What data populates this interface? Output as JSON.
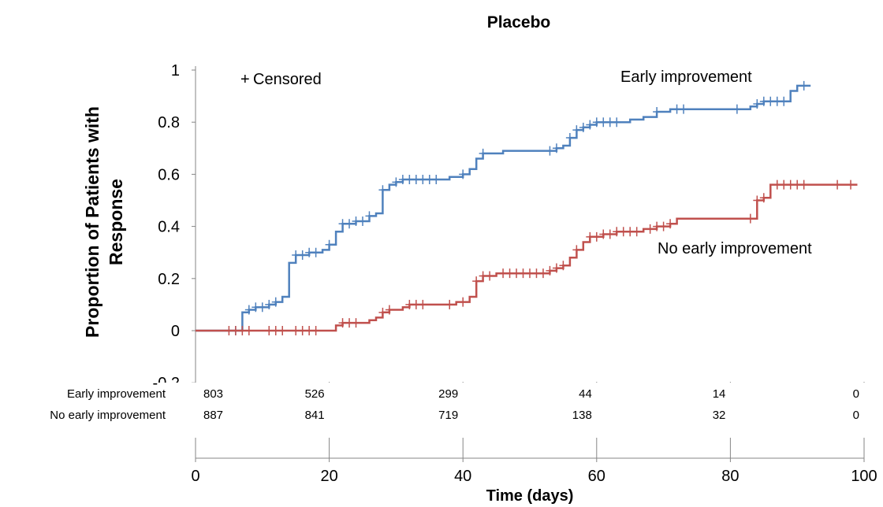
{
  "chart_data": {
    "type": "line",
    "title": "Placebo",
    "xlabel": "Time (days)",
    "ylabel_lines": [
      "Proportion of Patients with",
      "Response"
    ],
    "xlim": [
      0,
      100
    ],
    "ylim": [
      -0.2,
      1
    ],
    "x_ticks": [
      "0",
      "20",
      "40",
      "60",
      "80",
      "100"
    ],
    "y_ticks": [
      "-0.2",
      "0",
      "0.2",
      "0.4",
      "0.6",
      "0.8",
      "1"
    ],
    "legend_marker": "+",
    "legend_text": "Censored",
    "colors": {
      "early": "#4f81bd",
      "no_early": "#c0504d"
    },
    "series": [
      {
        "name": "Early improvement",
        "color": "#4f81bd",
        "steps": [
          [
            0,
            0
          ],
          [
            7,
            0.07
          ],
          [
            8,
            0.08
          ],
          [
            9,
            0.09
          ],
          [
            11,
            0.1
          ],
          [
            12,
            0.11
          ],
          [
            13,
            0.13
          ],
          [
            14,
            0.26
          ],
          [
            15,
            0.29
          ],
          [
            17,
            0.3
          ],
          [
            19,
            0.31
          ],
          [
            20,
            0.33
          ],
          [
            21,
            0.38
          ],
          [
            22,
            0.41
          ],
          [
            24,
            0.42
          ],
          [
            26,
            0.44
          ],
          [
            27,
            0.45
          ],
          [
            28,
            0.54
          ],
          [
            29,
            0.56
          ],
          [
            30,
            0.57
          ],
          [
            31,
            0.58
          ],
          [
            35,
            0.58
          ],
          [
            38,
            0.59
          ],
          [
            40,
            0.6
          ],
          [
            41,
            0.62
          ],
          [
            42,
            0.66
          ],
          [
            43,
            0.68
          ],
          [
            46,
            0.69
          ],
          [
            53,
            0.69
          ],
          [
            54,
            0.7
          ],
          [
            55,
            0.71
          ],
          [
            56,
            0.74
          ],
          [
            57,
            0.77
          ],
          [
            58,
            0.78
          ],
          [
            59,
            0.79
          ],
          [
            60,
            0.8
          ],
          [
            65,
            0.81
          ],
          [
            67,
            0.82
          ],
          [
            69,
            0.84
          ],
          [
            71,
            0.85
          ],
          [
            83,
            0.86
          ],
          [
            84,
            0.87
          ],
          [
            85,
            0.88
          ],
          [
            89,
            0.92
          ],
          [
            90,
            0.94
          ],
          [
            92,
            0.94
          ]
        ],
        "censored_x": [
          6,
          8,
          9,
          10,
          11,
          12,
          15,
          16,
          17,
          18,
          20,
          22,
          23,
          24,
          25,
          26,
          28,
          30,
          31,
          32,
          33,
          34,
          35,
          36,
          40,
          43,
          53,
          54,
          56,
          57,
          58,
          59,
          60,
          61,
          62,
          63,
          69,
          72,
          73,
          81,
          84,
          85,
          86,
          87,
          88,
          91
        ]
      },
      {
        "name": "No early improvement",
        "color": "#c0504d",
        "steps": [
          [
            0,
            0
          ],
          [
            21,
            0.02
          ],
          [
            22,
            0.03
          ],
          [
            26,
            0.04
          ],
          [
            27,
            0.05
          ],
          [
            28,
            0.07
          ],
          [
            29,
            0.08
          ],
          [
            31,
            0.09
          ],
          [
            32,
            0.1
          ],
          [
            39,
            0.11
          ],
          [
            41,
            0.13
          ],
          [
            42,
            0.19
          ],
          [
            43,
            0.21
          ],
          [
            45,
            0.22
          ],
          [
            53,
            0.23
          ],
          [
            54,
            0.24
          ],
          [
            55,
            0.25
          ],
          [
            56,
            0.28
          ],
          [
            57,
            0.31
          ],
          [
            58,
            0.34
          ],
          [
            59,
            0.36
          ],
          [
            61,
            0.37
          ],
          [
            63,
            0.38
          ],
          [
            67,
            0.39
          ],
          [
            69,
            0.4
          ],
          [
            71,
            0.41
          ],
          [
            72,
            0.43
          ],
          [
            84,
            0.5
          ],
          [
            85,
            0.51
          ],
          [
            86,
            0.56
          ],
          [
            99,
            0.56
          ]
        ],
        "censored_x": [
          5,
          6,
          7,
          8,
          11,
          12,
          13,
          15,
          16,
          17,
          18,
          22,
          23,
          24,
          28,
          29,
          32,
          33,
          34,
          38,
          40,
          42,
          43,
          44,
          46,
          47,
          48,
          49,
          50,
          51,
          52,
          53,
          54,
          55,
          57,
          59,
          60,
          61,
          62,
          63,
          64,
          65,
          66,
          68,
          69,
          70,
          71,
          83,
          84,
          85,
          87,
          88,
          89,
          90,
          91,
          96,
          98
        ]
      }
    ],
    "at_risk": {
      "rows": [
        {
          "label": "Early improvement",
          "values": [
            "803",
            "526",
            "299",
            "44",
            "14",
            "0"
          ]
        },
        {
          "label": "No early improvement",
          "values": [
            "887",
            "841",
            "719",
            "138",
            "32",
            "0"
          ]
        }
      ]
    }
  }
}
